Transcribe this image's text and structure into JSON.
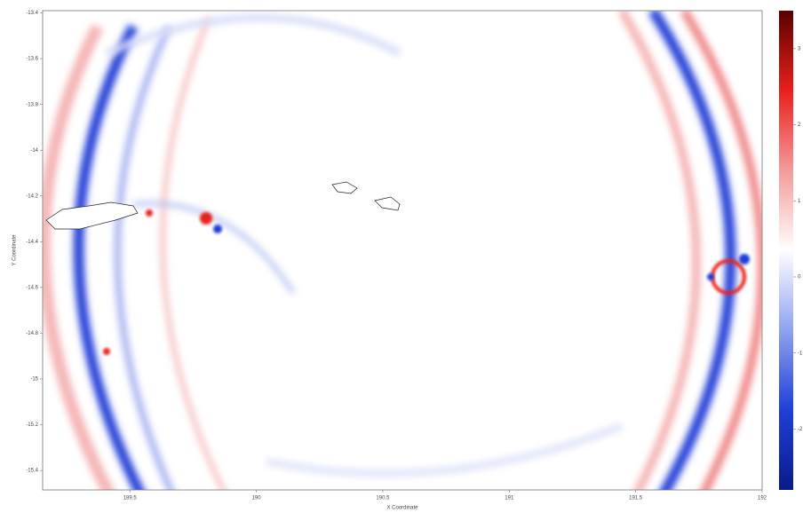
{
  "chart_data": {
    "type": "heatmap",
    "x_label": "X Coordinate",
    "y_label": "Y Coordinate",
    "xlim": [
      189.155,
      192.0
    ],
    "xticks": [
      189.5,
      190,
      190.5,
      191,
      191.5,
      192
    ],
    "ylim": [
      -15.485,
      -13.39
    ],
    "yticks": [
      -13.4,
      -13.6,
      -13.8,
      -14,
      -14.2,
      -14.4,
      -14.6,
      -14.8,
      -15,
      -15.2,
      -15.4
    ],
    "clim": [
      -2.8,
      3.5
    ],
    "cticks": [
      3,
      2,
      1,
      0,
      -1,
      -2
    ],
    "colormap": [
      "#0a1a8c",
      "#1f3fd6",
      "#8fa3f0",
      "#ffffff",
      "#f59a9a",
      "#e8201c",
      "#5a0000"
    ]
  }
}
